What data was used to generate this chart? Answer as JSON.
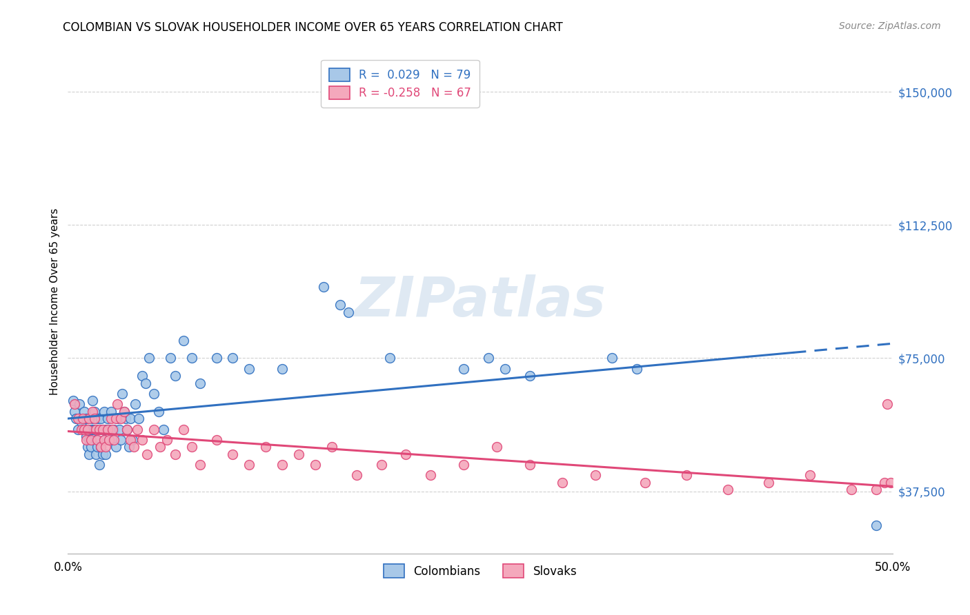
{
  "title": "COLOMBIAN VS SLOVAK HOUSEHOLDER INCOME OVER 65 YEARS CORRELATION CHART",
  "source": "Source: ZipAtlas.com",
  "ylabel": "Householder Income Over 65 years",
  "xlim": [
    0.0,
    0.5
  ],
  "ylim": [
    20000,
    162000
  ],
  "yticks": [
    37500,
    75000,
    112500,
    150000
  ],
  "ytick_labels": [
    "$37,500",
    "$75,000",
    "$112,500",
    "$150,000"
  ],
  "xticks": [
    0.0,
    0.1,
    0.2,
    0.3,
    0.4,
    0.5
  ],
  "xtick_labels": [
    "0.0%",
    "",
    "",
    "",
    "",
    "50.0%"
  ],
  "color_colombian": "#a8c8e8",
  "color_slovak": "#f4a8bc",
  "line_color_colombian": "#3070c0",
  "line_color_slovak": "#e04878",
  "background_color": "#ffffff",
  "grid_color": "#d0d0d0",
  "watermark_text": "ZIPatlas",
  "colombian_x": [
    0.003,
    0.004,
    0.005,
    0.006,
    0.007,
    0.008,
    0.009,
    0.01,
    0.011,
    0.011,
    0.012,
    0.012,
    0.013,
    0.013,
    0.014,
    0.014,
    0.015,
    0.015,
    0.015,
    0.016,
    0.016,
    0.017,
    0.017,
    0.018,
    0.018,
    0.019,
    0.019,
    0.02,
    0.02,
    0.021,
    0.021,
    0.022,
    0.022,
    0.023,
    0.023,
    0.024,
    0.025,
    0.026,
    0.027,
    0.028,
    0.029,
    0.03,
    0.031,
    0.032,
    0.033,
    0.034,
    0.035,
    0.036,
    0.037,
    0.038,
    0.039,
    0.041,
    0.043,
    0.045,
    0.047,
    0.049,
    0.052,
    0.055,
    0.058,
    0.062,
    0.065,
    0.07,
    0.075,
    0.08,
    0.09,
    0.1,
    0.11,
    0.13,
    0.155,
    0.165,
    0.17,
    0.195,
    0.24,
    0.255,
    0.265,
    0.28,
    0.33,
    0.345,
    0.49
  ],
  "colombian_y": [
    63000,
    60000,
    58000,
    55000,
    62000,
    57000,
    55000,
    60000,
    58000,
    53000,
    55000,
    50000,
    52000,
    48000,
    55000,
    50000,
    63000,
    58000,
    55000,
    60000,
    55000,
    52000,
    48000,
    58000,
    50000,
    55000,
    45000,
    58000,
    50000,
    55000,
    48000,
    60000,
    52000,
    55000,
    48000,
    58000,
    55000,
    60000,
    52000,
    55000,
    50000,
    58000,
    55000,
    52000,
    65000,
    60000,
    58000,
    55000,
    50000,
    58000,
    52000,
    62000,
    58000,
    70000,
    68000,
    75000,
    65000,
    60000,
    55000,
    75000,
    70000,
    80000,
    75000,
    68000,
    75000,
    75000,
    72000,
    72000,
    95000,
    90000,
    88000,
    75000,
    72000,
    75000,
    72000,
    70000,
    75000,
    72000,
    28000
  ],
  "slovak_x": [
    0.004,
    0.006,
    0.008,
    0.009,
    0.01,
    0.011,
    0.012,
    0.013,
    0.014,
    0.015,
    0.016,
    0.017,
    0.018,
    0.019,
    0.02,
    0.021,
    0.022,
    0.023,
    0.024,
    0.025,
    0.026,
    0.027,
    0.028,
    0.029,
    0.03,
    0.032,
    0.034,
    0.036,
    0.038,
    0.04,
    0.042,
    0.045,
    0.048,
    0.052,
    0.056,
    0.06,
    0.065,
    0.07,
    0.075,
    0.08,
    0.09,
    0.1,
    0.11,
    0.12,
    0.13,
    0.14,
    0.15,
    0.16,
    0.175,
    0.19,
    0.205,
    0.22,
    0.24,
    0.26,
    0.28,
    0.3,
    0.32,
    0.35,
    0.375,
    0.4,
    0.425,
    0.45,
    0.475,
    0.49,
    0.495,
    0.497,
    0.499
  ],
  "slovak_y": [
    62000,
    58000,
    55000,
    58000,
    55000,
    52000,
    55000,
    58000,
    52000,
    60000,
    58000,
    55000,
    52000,
    55000,
    50000,
    55000,
    52000,
    50000,
    55000,
    52000,
    58000,
    55000,
    52000,
    58000,
    62000,
    58000,
    60000,
    55000,
    52000,
    50000,
    55000,
    52000,
    48000,
    55000,
    50000,
    52000,
    48000,
    55000,
    50000,
    45000,
    52000,
    48000,
    45000,
    50000,
    45000,
    48000,
    45000,
    50000,
    42000,
    45000,
    48000,
    42000,
    45000,
    50000,
    45000,
    40000,
    42000,
    40000,
    42000,
    38000,
    40000,
    42000,
    38000,
    38000,
    40000,
    62000,
    40000
  ]
}
